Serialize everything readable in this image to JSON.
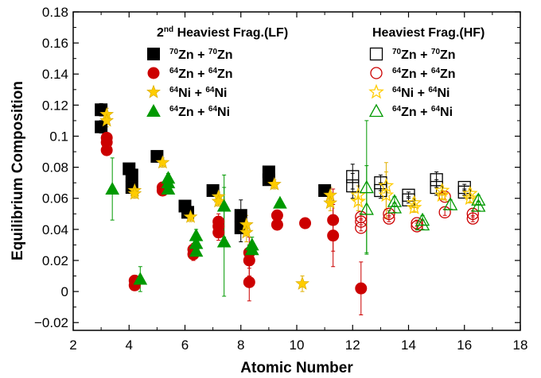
{
  "chart_data": {
    "type": "scatter",
    "xlabel": "Atomic Number",
    "ylabel": "Equilibrium Composition",
    "xlim": [
      2,
      18
    ],
    "ylim": [
      -0.025,
      0.18
    ],
    "xticks": [
      "2",
      "4",
      "6",
      "8",
      "10",
      "12",
      "14",
      "16",
      "18"
    ],
    "yticks": [
      "−0.02",
      "0",
      "0.02",
      "0.04",
      "0.06",
      "0.08",
      "0.1",
      "0.12",
      "0.14",
      "0.16",
      "0.18"
    ],
    "xtick_values": [
      2,
      4,
      6,
      8,
      10,
      12,
      14,
      16,
      18
    ],
    "ytick_values": [
      -0.02,
      0,
      0.02,
      0.04,
      0.06,
      0.08,
      0.1,
      0.12,
      0.14,
      0.16,
      0.18
    ],
    "grid": false,
    "legend_placement": "top",
    "legend_groups": [
      {
        "title_parts": [
          "2",
          "nd",
          " Heaviest Frag.(LF)"
        ],
        "entries": [
          {
            "a_sup": "70",
            "a": "Zn + ",
            "b_sup": "70",
            "b": "Zn",
            "color": "#000000",
            "marker": "square",
            "filled": true
          },
          {
            "a_sup": "64",
            "a": "Zn + ",
            "b_sup": "64",
            "b": "Zn",
            "color": "#cc0000",
            "marker": "circle",
            "filled": true
          },
          {
            "a_sup": "64",
            "a": "Ni + ",
            "b_sup": "64",
            "b": "Ni",
            "color": "#ffcc00",
            "marker": "star",
            "filled": true
          },
          {
            "a_sup": "64",
            "a": "Zn + ",
            "b_sup": "64",
            "b": "Ni",
            "color": "#009900",
            "marker": "triangle",
            "filled": true
          }
        ]
      },
      {
        "title_parts": [
          "",
          "",
          "Heaviest Frag.(HF)"
        ],
        "entries": [
          {
            "a_sup": "70",
            "a": "Zn + ",
            "b_sup": "70",
            "b": "Zn",
            "color": "#000000",
            "marker": "square",
            "filled": false
          },
          {
            "a_sup": "64",
            "a": "Zn + ",
            "b_sup": "64",
            "b": "Zn",
            "color": "#cc0000",
            "marker": "circle",
            "filled": false
          },
          {
            "a_sup": "64",
            "a": "Ni + ",
            "b_sup": "64",
            "b": "Ni",
            "color": "#ffcc00",
            "marker": "star",
            "filled": false
          },
          {
            "a_sup": "64",
            "a": "Zn + ",
            "b_sup": "64",
            "b": "Ni",
            "color": "#009900",
            "marker": "triangle",
            "filled": false
          }
        ]
      }
    ],
    "series": [
      {
        "group": "LF",
        "marker": "square",
        "filled": true,
        "color": "#000000",
        "points": [
          {
            "x": 3.0,
            "y": 0.117,
            "err": 0.004
          },
          {
            "x": 3.0,
            "y": 0.106,
            "err": 0.004
          },
          {
            "x": 4.0,
            "y": 0.079,
            "err": 0.003
          },
          {
            "x": 4.1,
            "y": 0.075,
            "err": 0.003
          },
          {
            "x": 4.1,
            "y": 0.067,
            "err": 0.003
          },
          {
            "x": 5.0,
            "y": 0.087,
            "err": 0.003
          },
          {
            "x": 6.0,
            "y": 0.055,
            "err": 0.003
          },
          {
            "x": 6.1,
            "y": 0.051,
            "err": 0.003
          },
          {
            "x": 7.0,
            "y": 0.065,
            "err": 0.003
          },
          {
            "x": 8.0,
            "y": 0.049,
            "err": 0.01
          },
          {
            "x": 8.0,
            "y": 0.041,
            "err": 0.009
          },
          {
            "x": 9.0,
            "y": 0.077,
            "err": 0.003
          },
          {
            "x": 9.0,
            "y": 0.072,
            "err": 0.003
          },
          {
            "x": 11.0,
            "y": 0.065,
            "err": 0.002
          }
        ]
      },
      {
        "group": "LF",
        "marker": "circle",
        "filled": true,
        "color": "#cc0000",
        "points": [
          {
            "x": 3.2,
            "y": 0.099,
            "err": 0.003
          },
          {
            "x": 3.2,
            "y": 0.096,
            "err": 0.003
          },
          {
            "x": 3.2,
            "y": 0.091,
            "err": 0.003
          },
          {
            "x": 4.2,
            "y": 0.007,
            "err": 0.003
          },
          {
            "x": 4.2,
            "y": 0.004,
            "err": 0.003
          },
          {
            "x": 5.2,
            "y": 0.067,
            "err": 0.003
          },
          {
            "x": 5.2,
            "y": 0.065,
            "err": 0.003
          },
          {
            "x": 6.3,
            "y": 0.027,
            "err": 0.004
          },
          {
            "x": 6.3,
            "y": 0.024,
            "err": 0.004
          },
          {
            "x": 7.2,
            "y": 0.045,
            "err": 0.005
          },
          {
            "x": 7.2,
            "y": 0.042,
            "err": 0.005
          },
          {
            "x": 7.2,
            "y": 0.038,
            "err": 0.005
          },
          {
            "x": 8.3,
            "y": 0.025,
            "err": 0.01
          },
          {
            "x": 8.3,
            "y": 0.02,
            "err": 0.01
          },
          {
            "x": 8.3,
            "y": 0.006,
            "err": 0.012
          },
          {
            "x": 9.3,
            "y": 0.049,
            "err": 0.003
          },
          {
            "x": 9.3,
            "y": 0.043,
            "err": 0.003
          },
          {
            "x": 10.3,
            "y": 0.044,
            "err": 0.002
          },
          {
            "x": 11.3,
            "y": 0.046,
            "err": 0.02
          },
          {
            "x": 11.3,
            "y": 0.036,
            "err": 0.02
          },
          {
            "x": 12.3,
            "y": 0.002,
            "err": 0.017
          }
        ]
      },
      {
        "group": "LF",
        "marker": "star",
        "filled": true,
        "color": "#ffcc00",
        "points": [
          {
            "x": 3.2,
            "y": 0.114,
            "err": 0.004
          },
          {
            "x": 3.2,
            "y": 0.11,
            "err": 0.004
          },
          {
            "x": 4.2,
            "y": 0.065,
            "err": 0.003
          },
          {
            "x": 4.2,
            "y": 0.063,
            "err": 0.003
          },
          {
            "x": 5.2,
            "y": 0.083,
            "err": 0.003
          },
          {
            "x": 6.2,
            "y": 0.048,
            "err": 0.003
          },
          {
            "x": 7.2,
            "y": 0.061,
            "err": 0.003
          },
          {
            "x": 7.2,
            "y": 0.058,
            "err": 0.003
          },
          {
            "x": 8.2,
            "y": 0.043,
            "err": 0.006
          },
          {
            "x": 8.2,
            "y": 0.038,
            "err": 0.006
          },
          {
            "x": 9.2,
            "y": 0.069,
            "err": 0.003
          },
          {
            "x": 10.2,
            "y": 0.005,
            "err": 0.005
          },
          {
            "x": 11.2,
            "y": 0.062,
            "err": 0.005
          },
          {
            "x": 11.2,
            "y": 0.057,
            "err": 0.005
          }
        ]
      },
      {
        "group": "LF",
        "marker": "triangle",
        "filled": true,
        "color": "#009900",
        "points": [
          {
            "x": 3.4,
            "y": 0.066,
            "err": 0.02
          },
          {
            "x": 4.4,
            "y": 0.008,
            "err": 0.008
          },
          {
            "x": 5.4,
            "y": 0.073,
            "err": 0.003
          },
          {
            "x": 5.4,
            "y": 0.07,
            "err": 0.003
          },
          {
            "x": 5.4,
            "y": 0.066,
            "err": 0.003
          },
          {
            "x": 6.4,
            "y": 0.036,
            "err": 0.004
          },
          {
            "x": 6.4,
            "y": 0.031,
            "err": 0.004
          },
          {
            "x": 6.4,
            "y": 0.026,
            "err": 0.004
          },
          {
            "x": 7.4,
            "y": 0.055,
            "err": 0.02
          },
          {
            "x": 7.4,
            "y": 0.032,
            "err": 0.035
          },
          {
            "x": 8.4,
            "y": 0.03,
            "err": 0.005
          },
          {
            "x": 8.4,
            "y": 0.027,
            "err": 0.005
          },
          {
            "x": 9.4,
            "y": 0.057,
            "err": 0.002
          }
        ]
      },
      {
        "group": "HF",
        "marker": "square",
        "filled": false,
        "color": "#000000",
        "points": [
          {
            "x": 12.0,
            "y": 0.074,
            "err": 0.008
          },
          {
            "x": 12.0,
            "y": 0.068,
            "err": 0.008
          },
          {
            "x": 13.0,
            "y": 0.07,
            "err": 0.005
          },
          {
            "x": 13.0,
            "y": 0.065,
            "err": 0.005
          },
          {
            "x": 14.0,
            "y": 0.062,
            "err": 0.002
          },
          {
            "x": 14.0,
            "y": 0.059,
            "err": 0.002
          },
          {
            "x": 15.0,
            "y": 0.072,
            "err": 0.005
          },
          {
            "x": 15.0,
            "y": 0.067,
            "err": 0.005
          },
          {
            "x": 16.0,
            "y": 0.067,
            "err": 0.002
          },
          {
            "x": 16.0,
            "y": 0.064,
            "err": 0.002
          }
        ]
      },
      {
        "group": "HF",
        "marker": "circle",
        "filled": false,
        "color": "#cc0000",
        "points": [
          {
            "x": 12.3,
            "y": 0.048,
            "err": 0.002
          },
          {
            "x": 12.3,
            "y": 0.045,
            "err": 0.002
          },
          {
            "x": 12.3,
            "y": 0.041,
            "err": 0.002
          },
          {
            "x": 13.3,
            "y": 0.05,
            "err": 0.002
          },
          {
            "x": 13.3,
            "y": 0.047,
            "err": 0.002
          },
          {
            "x": 14.3,
            "y": 0.044,
            "err": 0.002
          },
          {
            "x": 14.3,
            "y": 0.042,
            "err": 0.002
          },
          {
            "x": 15.3,
            "y": 0.061,
            "err": 0.002
          },
          {
            "x": 15.3,
            "y": 0.051,
            "err": 0.002
          },
          {
            "x": 16.3,
            "y": 0.05,
            "err": 0.002
          },
          {
            "x": 16.3,
            "y": 0.047,
            "err": 0.002
          }
        ]
      },
      {
        "group": "HF",
        "marker": "star",
        "filled": false,
        "color": "#ffcc00",
        "points": [
          {
            "x": 12.2,
            "y": 0.062,
            "err": 0.006
          },
          {
            "x": 12.2,
            "y": 0.058,
            "err": 0.006
          },
          {
            "x": 13.2,
            "y": 0.068,
            "err": 0.015
          },
          {
            "x": 13.2,
            "y": 0.062,
            "err": 0.015
          },
          {
            "x": 14.2,
            "y": 0.057,
            "err": 0.003
          },
          {
            "x": 14.2,
            "y": 0.054,
            "err": 0.003
          },
          {
            "x": 15.2,
            "y": 0.065,
            "err": 0.003
          },
          {
            "x": 15.2,
            "y": 0.062,
            "err": 0.003
          },
          {
            "x": 16.2,
            "y": 0.063,
            "err": 0.003
          },
          {
            "x": 16.2,
            "y": 0.06,
            "err": 0.003
          }
        ]
      },
      {
        "group": "HF",
        "marker": "triangle",
        "filled": false,
        "color": "#009900",
        "points": [
          {
            "x": 12.5,
            "y": 0.067,
            "err": 0.043
          },
          {
            "x": 12.5,
            "y": 0.053,
            "err": 0.028
          },
          {
            "x": 13.5,
            "y": 0.058,
            "err": 0.003
          },
          {
            "x": 13.5,
            "y": 0.054,
            "err": 0.003
          },
          {
            "x": 14.5,
            "y": 0.046,
            "err": 0.003
          },
          {
            "x": 14.5,
            "y": 0.043,
            "err": 0.003
          },
          {
            "x": 15.5,
            "y": 0.056,
            "err": 0.003
          },
          {
            "x": 16.5,
            "y": 0.059,
            "err": 0.003
          },
          {
            "x": 16.5,
            "y": 0.055,
            "err": 0.003
          }
        ]
      }
    ]
  }
}
